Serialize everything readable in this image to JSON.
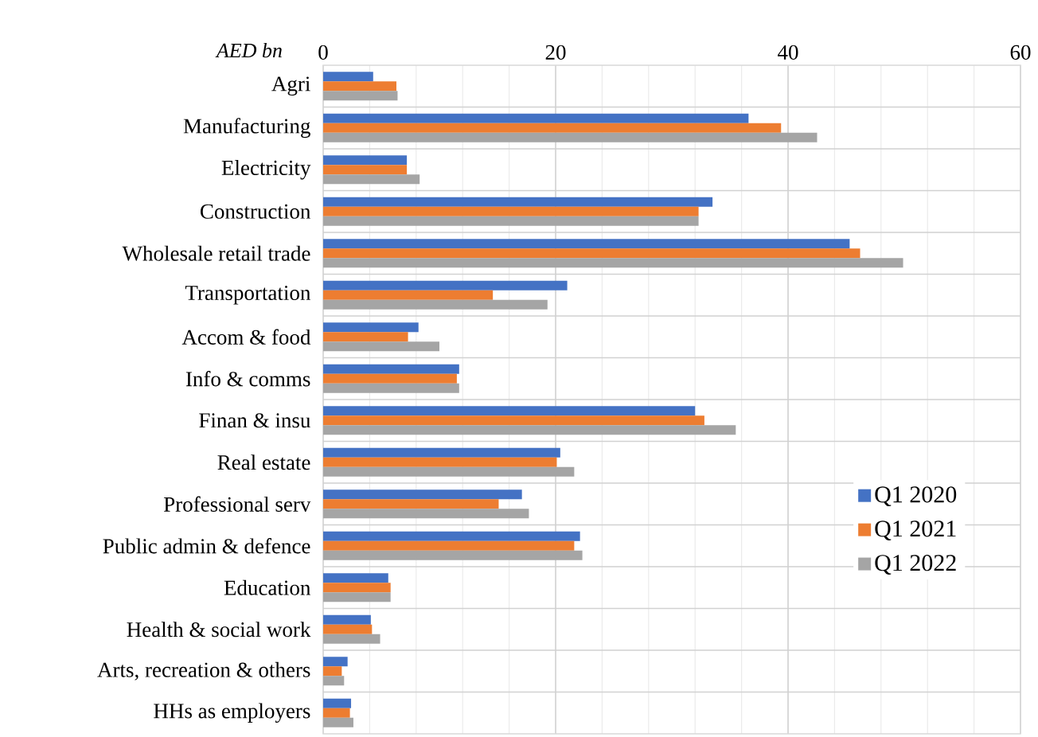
{
  "chart_data": {
    "type": "bar",
    "orientation": "horizontal",
    "xlabel": "AED bn",
    "categories": [
      "Agri",
      "Manufacturing",
      "Electricity",
      "Construction",
      "Wholesale retail trade",
      "Transportation",
      "Accom & food",
      "Info & comms",
      "Finan & insu",
      "Real estate",
      "Professional serv",
      "Public admin & defence",
      "Education",
      "Health & social work",
      "Arts, recreation & others",
      "HHs as employers"
    ],
    "series": [
      {
        "name": "Q1 2020",
        "color": "#4472c4",
        "values": [
          4.3,
          36.6,
          7.2,
          33.5,
          45.3,
          21.0,
          8.2,
          11.7,
          32.0,
          20.4,
          17.1,
          22.1,
          5.6,
          4.1,
          2.1,
          2.4
        ]
      },
      {
        "name": "Q1 2021",
        "color": "#ed7d31",
        "values": [
          6.3,
          39.4,
          7.2,
          32.3,
          46.2,
          14.6,
          7.3,
          11.5,
          32.8,
          20.1,
          15.1,
          21.6,
          5.8,
          4.2,
          1.6,
          2.3
        ]
      },
      {
        "name": "Q1 2022",
        "color": "#a5a5a5",
        "values": [
          6.4,
          42.5,
          8.3,
          32.3,
          49.9,
          19.3,
          10.0,
          11.7,
          35.5,
          21.6,
          17.7,
          22.3,
          5.8,
          4.9,
          1.8,
          2.6
        ]
      }
    ],
    "xlim": [
      0,
      60
    ],
    "xticks": [
      0,
      20,
      40,
      60
    ],
    "grid": true,
    "legend": "right"
  }
}
